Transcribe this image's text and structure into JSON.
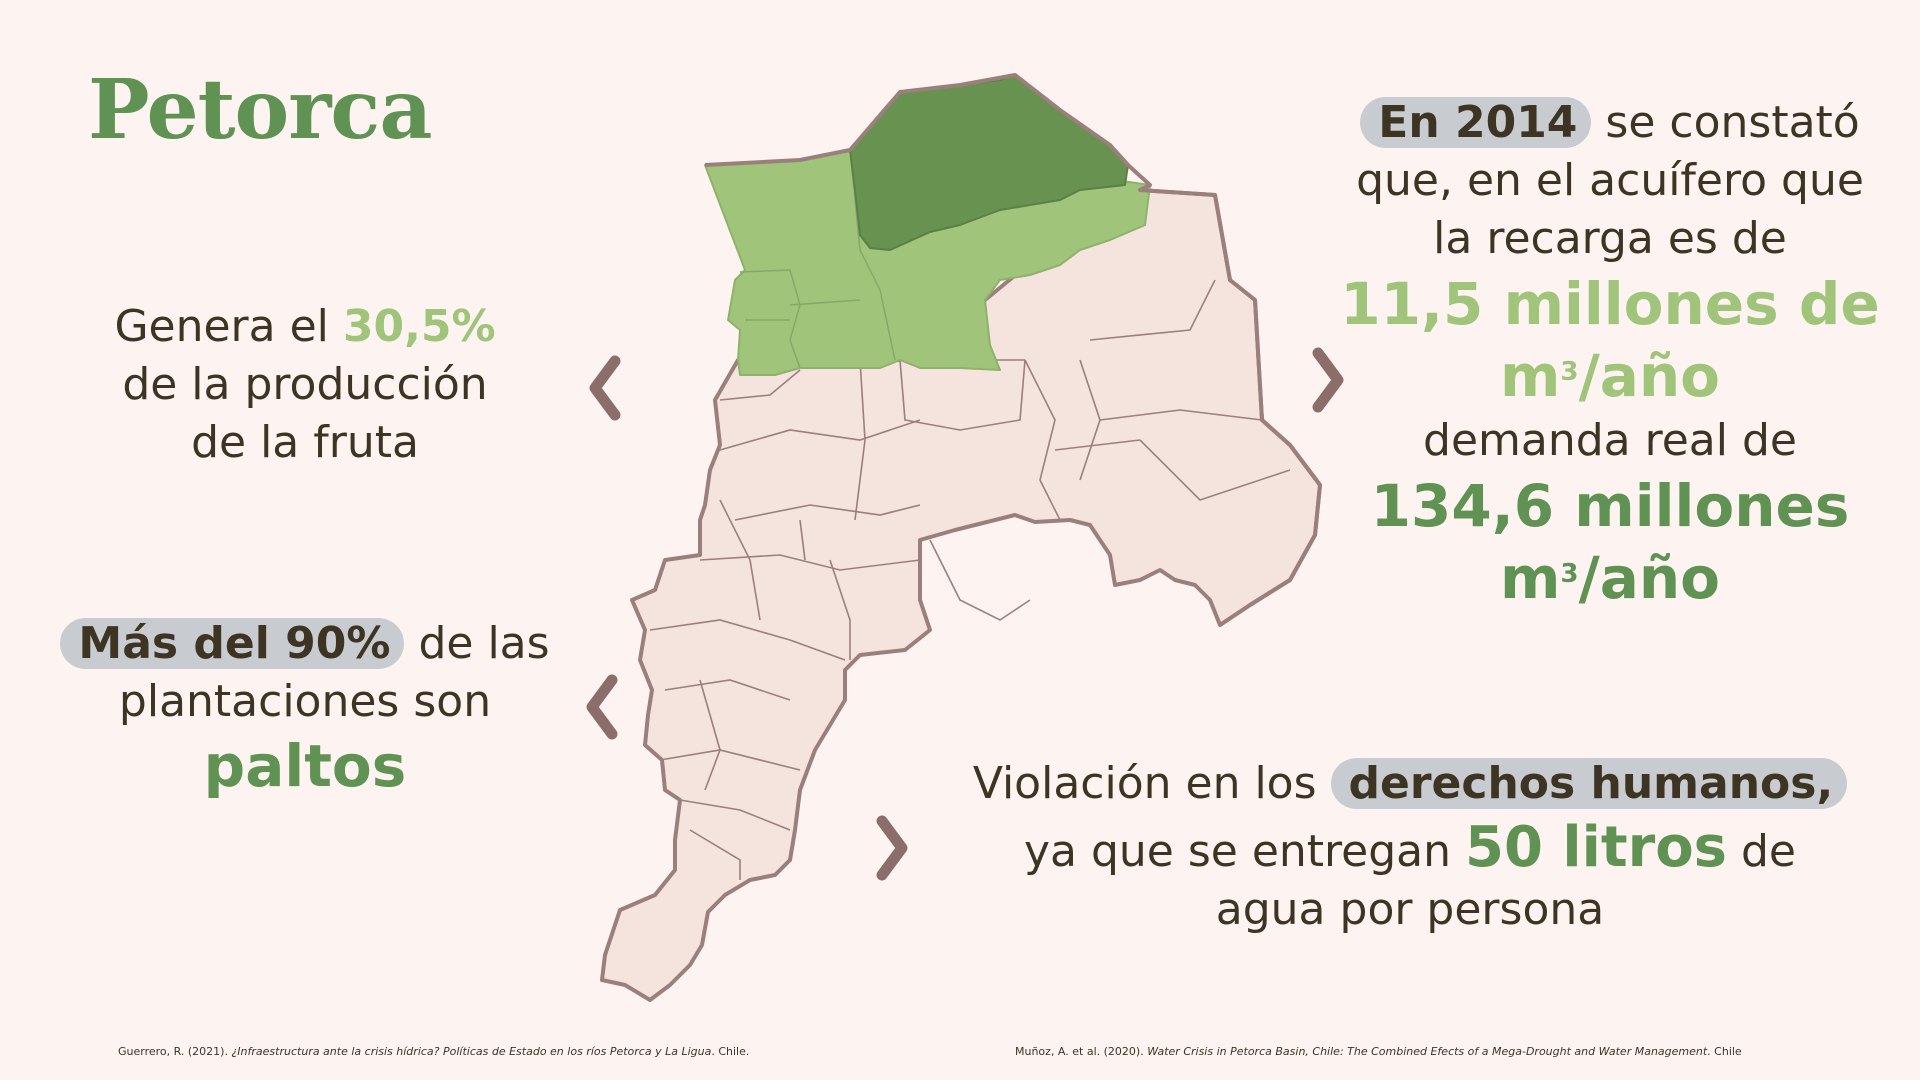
{
  "title": "Petorca",
  "left": {
    "fruit": {
      "pre": "Genera el ",
      "value": "30,5%",
      "line2": "de la producción",
      "line3": "de la fruta"
    },
    "palto": {
      "pill": "Más del 90%",
      "post": " de las",
      "line2": "plantaciones son",
      "line3": "paltos"
    }
  },
  "right": {
    "aquifer": {
      "pill": "En 2014",
      "post": " se constató",
      "line2": "que, en el acuífero que",
      "line3": "la recarga es de",
      "recharge_value": "11,5 millones de",
      "recharge_unit_m": "m",
      "recharge_unit_exp": "3",
      "recharge_unit_rest": "/año",
      "demand_label": "demanda real de",
      "demand_value": "134,6 millones",
      "demand_unit_m": "m",
      "demand_unit_exp": "3",
      "demand_unit_rest": "/año"
    },
    "rights": {
      "pre": "Violación en los ",
      "pill": "derechos humanos,",
      "line2_pre": "ya que se entregan ",
      "line2_value": "50 litros",
      "line2_post": " de",
      "line3": "agua por persona"
    }
  },
  "references": {
    "left": {
      "author": "Guerrero, R. (2021). ",
      "title": "¿Infraestructura ante la crisis hídrica? Políticas de Estado en los ríos Petorca y La Ligua",
      "tail": ". Chile."
    },
    "right": {
      "author": "Muñoz, A. et al. (2020). ",
      "title": "Water Crisis in Petorca Basin, Chile: The Combined Efects of a Mega-Drought and Water Management",
      "tail": ". Chile"
    }
  },
  "colors": {
    "background": "#fdf4f1",
    "dark_green": "#5f9253",
    "light_green": "#9fc47a",
    "region_fill": "#f5e3de",
    "region_border": "#9a7f7d",
    "chevron": "#8b6e6b",
    "pill": "#c8ccd0",
    "text": "#3d3424"
  },
  "icons": [
    "chevron-left-icon",
    "chevron-right-icon"
  ]
}
